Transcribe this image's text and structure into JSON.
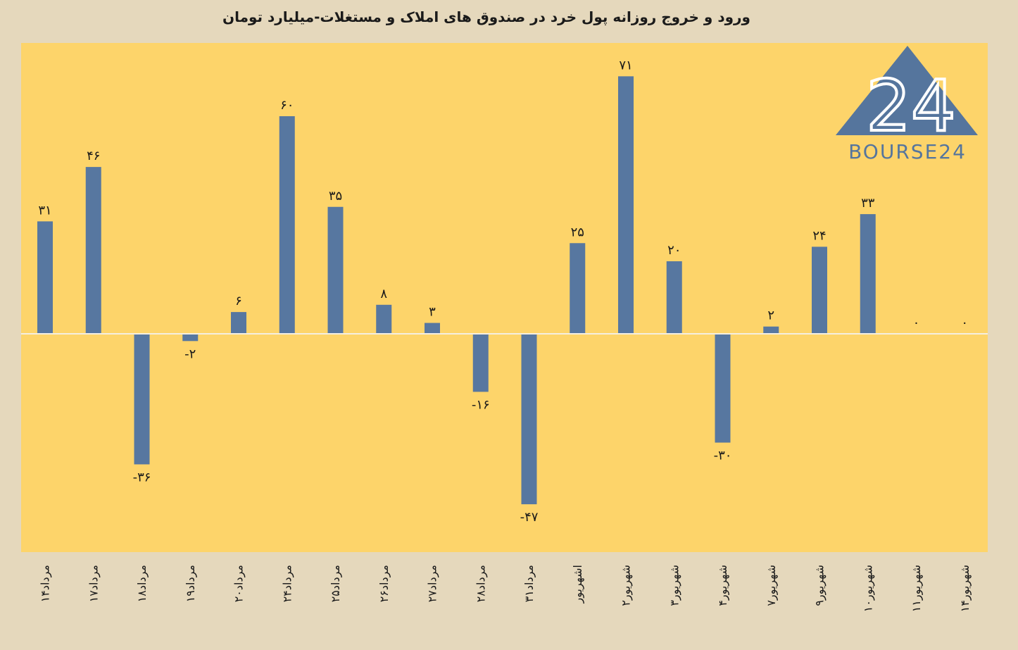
{
  "chart_data": {
    "type": "bar",
    "title": "ورود و خروج روزانه پول خرد در صندوق های املاک و مستغلات-میلیارد تومان",
    "xlabel": "",
    "ylabel": "",
    "categories": [
      "۱۴مرداد",
      "۱۷مرداد",
      "۱۸مرداد",
      "۱۹مرداد",
      "۲۰مرداد",
      "۲۴مرداد",
      "۲۵مرداد",
      "۲۶مرداد",
      "۲۷مرداد",
      "۲۸مرداد",
      "۳۱مرداد",
      "اشهریور",
      "۲شهریور",
      "۳شهریور",
      "۴شهریور",
      "۷شهریور",
      "۹شهریور",
      "۱۰شهریور",
      "۱۱شهریور",
      "۱۴شهریور"
    ],
    "values": [
      31,
      46,
      -36,
      -2,
      6,
      60,
      35,
      8,
      3,
      -16,
      -47,
      25,
      71,
      20,
      -30,
      2,
      24,
      33,
      0,
      0
    ],
    "value_labels": [
      "۳۱",
      "۴۶",
      "-۳۶",
      "-۲",
      "۶",
      "۶۰",
      "۳۵",
      "۸",
      "۳",
      "-۱۶",
      "-۴۷",
      "۲۵",
      "۷۱",
      "۲۰",
      "-۳۰",
      "۲",
      "۲۴",
      "۳۳",
      "۰",
      "۰"
    ],
    "ylim": [
      -60,
      80
    ],
    "grid": false,
    "legend": "none",
    "colors": {
      "bar": "#5777a0",
      "plot_bg": "#fdd46a",
      "page_bg": "#e5d8bc",
      "zero_line": "#f5efe0",
      "text": "#1a1a1a"
    }
  },
  "logo": {
    "text": "BOURSE24",
    "mark": "24",
    "color": "#55759d"
  }
}
